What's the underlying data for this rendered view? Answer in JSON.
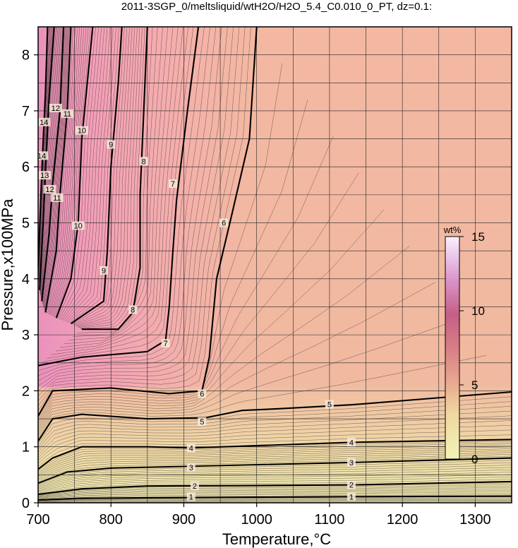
{
  "chart_data": {
    "type": "contour",
    "title": "2011-3SGP_0/meltsliquid/wtH2O/H2O_5.4_C0.010_0_PT, dz=0.1:",
    "xlabel": "Temperature,°C",
    "ylabel": "Pressure,x100MPa",
    "xlim": [
      700,
      1350
    ],
    "ylim": [
      0,
      8.5
    ],
    "x_ticks": [
      "700",
      "800",
      "900",
      "1000",
      "1100",
      "1200",
      "1300"
    ],
    "y_ticks": [
      "0",
      "1",
      "2",
      "3",
      "4",
      "5",
      "6",
      "7",
      "8"
    ],
    "grid": true,
    "colorbar": {
      "unit": "wt%",
      "range": [
        0,
        15
      ],
      "ticks": [
        "0",
        "5",
        "10",
        "15"
      ],
      "position": "right-middle"
    },
    "contour_interval": 0.1,
    "labeled_contours": [
      {
        "level": "1",
        "points": [
          [
            700,
            0.05
          ],
          [
            760,
            0.08
          ],
          [
            850,
            0.09
          ],
          [
            1000,
            0.1
          ],
          [
            1130,
            0.11
          ],
          [
            1350,
            0.12
          ]
        ],
        "label_at": [
          [
            910,
            0.11
          ],
          [
            1130,
            0.11
          ]
        ]
      },
      {
        "level": "2",
        "points": [
          [
            700,
            0.15
          ],
          [
            760,
            0.25
          ],
          [
            850,
            0.3
          ],
          [
            1000,
            0.31
          ],
          [
            1130,
            0.32
          ],
          [
            1350,
            0.38
          ]
        ],
        "label_at": [
          [
            915,
            0.3
          ],
          [
            1130,
            0.32
          ]
        ]
      },
      {
        "level": "3",
        "points": [
          [
            700,
            0.35
          ],
          [
            740,
            0.55
          ],
          [
            800,
            0.62
          ],
          [
            900,
            0.65
          ],
          [
            1130,
            0.72
          ],
          [
            1350,
            0.8
          ]
        ],
        "label_at": [
          [
            910,
            0.63
          ],
          [
            1130,
            0.72
          ]
        ]
      },
      {
        "level": "4",
        "points": [
          [
            700,
            0.6
          ],
          [
            720,
            0.8
          ],
          [
            760,
            1.0
          ],
          [
            850,
            1.0
          ],
          [
            910,
            0.98
          ],
          [
            1000,
            1.02
          ],
          [
            1130,
            1.08
          ],
          [
            1350,
            1.13
          ]
        ],
        "label_at": [
          [
            910,
            0.98
          ],
          [
            1130,
            1.08
          ]
        ]
      },
      {
        "level": "5",
        "points": [
          [
            700,
            1.1
          ],
          [
            720,
            1.5
          ],
          [
            760,
            1.58
          ],
          [
            850,
            1.5
          ],
          [
            930,
            1.52
          ],
          [
            980,
            1.65
          ],
          [
            1030,
            1.68
          ],
          [
            1130,
            1.75
          ],
          [
            1350,
            1.98
          ]
        ],
        "label_at": [
          [
            925,
            1.45
          ],
          [
            1100,
            1.76
          ]
        ]
      },
      {
        "level": "6",
        "points": [
          [
            700,
            1.55
          ],
          [
            720,
            2.0
          ],
          [
            800,
            2.05
          ],
          [
            880,
            1.95
          ],
          [
            925,
            2.0
          ],
          [
            935,
            2.6
          ],
          [
            945,
            4.0
          ],
          [
            965,
            5.1
          ],
          [
            990,
            6.5
          ],
          [
            1000,
            8.5
          ]
        ],
        "label_at": [
          [
            925,
            1.95
          ],
          [
            955,
            5.0
          ]
        ]
      },
      {
        "level": "7",
        "points": [
          [
            700,
            2.45
          ],
          [
            760,
            2.6
          ],
          [
            850,
            2.7
          ],
          [
            875,
            2.9
          ],
          [
            880,
            3.5
          ],
          [
            885,
            4.5
          ],
          [
            890,
            5.4
          ],
          [
            905,
            7.0
          ],
          [
            920,
            8.5
          ]
        ],
        "label_at": [
          [
            875,
            2.85
          ],
          [
            885,
            5.7
          ]
        ]
      },
      {
        "level": "8",
        "points": [
          [
            760,
            3.1
          ],
          [
            810,
            3.1
          ],
          [
            830,
            3.4
          ],
          [
            840,
            4.2
          ],
          [
            840,
            5.5
          ],
          [
            845,
            7.0
          ],
          [
            850,
            8.5
          ]
        ],
        "label_at": [
          [
            830,
            3.45
          ],
          [
            845,
            6.1
          ]
        ]
      },
      {
        "level": "9",
        "points": [
          [
            745,
            3.2
          ],
          [
            790,
            3.6
          ],
          [
            795,
            4.5
          ],
          [
            800,
            6.0
          ],
          [
            810,
            7.5
          ],
          [
            815,
            8.5
          ]
        ],
        "label_at": [
          [
            790,
            4.15
          ],
          [
            800,
            6.4
          ]
        ]
      },
      {
        "level": "10",
        "points": [
          [
            725,
            3.3
          ],
          [
            745,
            4.0
          ],
          [
            755,
            5.0
          ],
          [
            760,
            6.5
          ],
          [
            775,
            8.5
          ]
        ],
        "label_at": [
          [
            755,
            4.95
          ],
          [
            760,
            6.65
          ]
        ]
      },
      {
        "level": "11",
        "points": [
          [
            710,
            3.4
          ],
          [
            725,
            4.5
          ],
          [
            730,
            5.5
          ],
          [
            740,
            7.0
          ],
          [
            745,
            8.5
          ]
        ],
        "label_at": [
          [
            726,
            5.45
          ],
          [
            740,
            6.95
          ]
        ]
      },
      {
        "level": "12",
        "points": [
          [
            705,
            3.6
          ],
          [
            715,
            4.8
          ],
          [
            720,
            5.7
          ],
          [
            730,
            7.0
          ],
          [
            735,
            8.5
          ]
        ],
        "label_at": [
          [
            716,
            5.6
          ],
          [
            724,
            7.05
          ]
        ]
      },
      {
        "level": "13",
        "points": [
          [
            702,
            3.8
          ],
          [
            707,
            5.0
          ],
          [
            710,
            5.9
          ],
          [
            715,
            7.2
          ],
          [
            722,
            8.5
          ]
        ],
        "label_at": [
          [
            709,
            5.85
          ]
        ]
      },
      {
        "level": "14",
        "points": [
          [
            700,
            4.2
          ],
          [
            703,
            5.2
          ],
          [
            706,
            6.2
          ],
          [
            710,
            7.3
          ],
          [
            713,
            8.5
          ]
        ],
        "label_at": [
          [
            705,
            6.2
          ],
          [
            708,
            6.8
          ]
        ]
      }
    ]
  }
}
